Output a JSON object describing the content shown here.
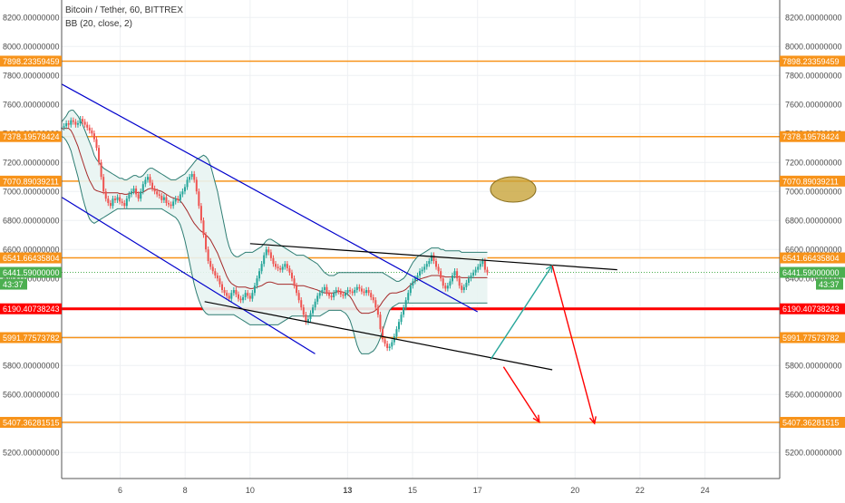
{
  "header": {
    "title": "Bitcoin / Tether, 60, BITTREX",
    "indicator": "BB (20, close, 2)"
  },
  "colors": {
    "orange": "#f7931a",
    "red": "#ff0000",
    "green": "#26a69a",
    "blue_line": "#0000cc",
    "bb_band": "#2e7d73",
    "bb_fill": "#e8f4f2",
    "bb_mid": "#a52a2a",
    "candle_up": "#26a69a",
    "candle_down": "#ef5350",
    "ellipse": "#c8a43a",
    "last_price": "#4caf50"
  },
  "chart_data": {
    "type": "candlestick",
    "y_axis": {
      "range": [
        5020,
        8320
      ],
      "ticks": [
        "8200.00000000",
        "8000.00000000",
        "7800.00000000",
        "7600.00000000",
        "7400.00000000",
        "7200.00000000",
        "7000.00000000",
        "6800.00000000",
        "6600.00000000",
        "6400.00000000",
        "6200.00000000",
        "6000.00000000",
        "5800.00000000",
        "5600.00000000",
        "5400.00000000",
        "5200.00000000"
      ],
      "tick_values": [
        8200,
        8000,
        7800,
        7600,
        7400,
        7200,
        7000,
        6800,
        6600,
        6400,
        6200,
        6000,
        5800,
        5600,
        5400,
        5200
      ]
    },
    "x_axis": {
      "ticks": [
        "6",
        "8",
        "10",
        "13",
        "15",
        "17",
        "20",
        "22",
        "24"
      ],
      "tick_days": [
        6,
        8,
        10,
        13,
        15,
        17,
        20,
        22,
        24
      ],
      "range_days": [
        4.2,
        26.3
      ]
    },
    "horizontal_levels": [
      {
        "value": 7898.23359459,
        "label": "7898.23359459",
        "color": "orange"
      },
      {
        "value": 7378.19578424,
        "label": "7378.19578424",
        "color": "orange"
      },
      {
        "value": 7070.89039211,
        "label": "7070.89039211",
        "color": "orange"
      },
      {
        "value": 6541.66435804,
        "label": "6541.66435804",
        "color": "orange"
      },
      {
        "value": 6190.40738243,
        "label": "6190.40738243",
        "color": "red"
      },
      {
        "value": 5991.77573782,
        "label": "5991.77573782",
        "color": "orange"
      },
      {
        "value": 5407.36281515,
        "label": "5407.36281515",
        "color": "orange"
      }
    ],
    "last_price": {
      "value": 6441.59,
      "label": "6441.59000000",
      "countdown": "43:37"
    },
    "trend_lines": [
      {
        "color": "blue_line",
        "from": [
          4.2,
          7740
        ],
        "to": [
          17.0,
          6170
        ]
      },
      {
        "color": "blue_line",
        "from": [
          4.2,
          6960
        ],
        "to": [
          12.0,
          5880
        ]
      },
      {
        "color": "black",
        "from": [
          10.0,
          6640
        ],
        "to": [
          21.3,
          6460
        ]
      },
      {
        "color": "black",
        "from": [
          8.6,
          6240
        ],
        "to": [
          19.3,
          5770
        ]
      }
    ],
    "arrows": [
      {
        "color": "green",
        "from": [
          17.4,
          5840
        ],
        "to": [
          19.3,
          6490
        ]
      },
      {
        "color": "red",
        "from": [
          19.3,
          6490
        ],
        "to": [
          20.6,
          5400
        ]
      },
      {
        "color": "red",
        "from": [
          17.8,
          5790
        ],
        "to": [
          18.9,
          5410
        ]
      }
    ],
    "closes": [
      7440,
      7450,
      7470,
      7460,
      7490,
      7480,
      7460,
      7470,
      7500,
      7480,
      7460,
      7440,
      7420,
      7400,
      7360,
      7300,
      7200,
      7100,
      7000,
      6950,
      6920,
      6900,
      6950,
      6940,
      6960,
      6930,
      6920,
      6900,
      6950,
      6980,
      7000,
      7020,
      6980,
      6950,
      7000,
      7050,
      7080,
      7100,
      7060,
      7020,
      7000,
      6980,
      6970,
      6940,
      6960,
      6920,
      6910,
      6900,
      6930,
      6950,
      6940,
      6980,
      7000,
      7030,
      7080,
      7100,
      7120,
      7080,
      7000,
      6900,
      6800,
      6700,
      6600,
      6520,
      6480,
      6450,
      6420,
      6400,
      6360,
      6320,
      6300,
      6280,
      6260,
      6300,
      6320,
      6290,
      6260,
      6250,
      6270,
      6300,
      6280,
      6260,
      6300,
      6350,
      6400,
      6450,
      6500,
      6560,
      6600,
      6580,
      6540,
      6500,
      6480,
      6470,
      6460,
      6480,
      6500,
      6470,
      6440,
      6400,
      6350,
      6300,
      6250,
      6200,
      6150,
      6100,
      6120,
      6160,
      6200,
      6240,
      6280,
      6300,
      6320,
      6340,
      6300,
      6280,
      6270,
      6300,
      6320,
      6310,
      6290,
      6280,
      6300,
      6320,
      6310,
      6300,
      6320,
      6340,
      6330,
      6310,
      6300,
      6320,
      6300,
      6270,
      6250,
      6200,
      6150,
      6050,
      5980,
      5950,
      5920,
      5930,
      5960,
      6000,
      6050,
      6100,
      6150,
      6200,
      6250,
      6300,
      6350,
      6380,
      6400,
      6420,
      6450,
      6460,
      6480,
      6500,
      6520,
      6560,
      6520,
      6480,
      6450,
      6400,
      6350,
      6330,
      6350,
      6380,
      6420,
      6450,
      6400,
      6350,
      6320,
      6340,
      6370,
      6400,
      6420,
      6440,
      6460,
      6480,
      6500,
      6520,
      6460,
      6441.59
    ],
    "bb_upper": [
      7480,
      7500,
      7520,
      7550,
      7560,
      7560,
      7540,
      7520,
      7490,
      7460,
      7420,
      7380,
      7340,
      7300,
      7250,
      7220,
      7200,
      7180,
      7160,
      7150,
      7140,
      7130,
      7120,
      7110,
      7100,
      7090,
      7090,
      7080,
      7080,
      7090,
      7100,
      7110,
      7110,
      7100,
      7100,
      7110,
      7130,
      7150,
      7160,
      7160,
      7150,
      7140,
      7130,
      7120,
      7110,
      7100,
      7090,
      7080,
      7080,
      7080,
      7090,
      7100,
      7110,
      7120,
      7140,
      7160,
      7180,
      7200,
      7220,
      7230,
      7240,
      7250,
      7240,
      7220,
      7180,
      7120,
      7060,
      7000,
      6920,
      6840,
      6760,
      6680,
      6620,
      6580,
      6560,
      6550,
      6550,
      6560,
      6570,
      6580,
      6580,
      6580,
      6580,
      6590,
      6600,
      6610,
      6620,
      6640,
      6660,
      6670,
      6670,
      6660,
      6650,
      6640,
      6630,
      6620,
      6610,
      6600,
      6590,
      6580,
      6570,
      6560,
      6560,
      6560,
      6560,
      6550,
      6540,
      6530,
      6520,
      6510,
      6500,
      6480,
      6460,
      6440,
      6430,
      6420,
      6420,
      6420,
      6430,
      6440,
      6440,
      6440,
      6440,
      6440,
      6440,
      6440,
      6440,
      6440,
      6440,
      6440,
      6440,
      6440,
      6440,
      6440,
      6440,
      6440,
      6440,
      6440,
      6440,
      6430,
      6420,
      6410,
      6400,
      6390,
      6380,
      6380,
      6390,
      6400,
      6420,
      6450,
      6480,
      6510,
      6530,
      6550,
      6560,
      6570,
      6580,
      6590,
      6600,
      6610,
      6610,
      6610,
      6610,
      6600,
      6600,
      6590,
      6590,
      6590,
      6590,
      6590,
      6590,
      6590,
      6580,
      6580,
      6580,
      6580,
      6580,
      6580,
      6580,
      6580,
      6580,
      6580,
      6580,
      6580
    ],
    "bb_lower": [
      7380,
      7370,
      7350,
      7320,
      7280,
      7220,
      7160,
      7100,
      7030,
      6960,
      6900,
      6850,
      6810,
      6790,
      6780,
      6790,
      6800,
      6810,
      6820,
      6830,
      6840,
      6850,
      6860,
      6870,
      6880,
      6880,
      6880,
      6880,
      6880,
      6880,
      6880,
      6880,
      6880,
      6880,
      6880,
      6880,
      6880,
      6880,
      6880,
      6880,
      6880,
      6880,
      6880,
      6880,
      6870,
      6860,
      6850,
      6840,
      6830,
      6820,
      6800,
      6770,
      6720,
      6660,
      6590,
      6510,
      6430,
      6360,
      6300,
      6250,
      6210,
      6180,
      6160,
      6150,
      6150,
      6150,
      6150,
      6150,
      6150,
      6150,
      6150,
      6150,
      6150,
      6150,
      6150,
      6140,
      6130,
      6120,
      6110,
      6100,
      6090,
      6080,
      6080,
      6080,
      6080,
      6080,
      6080,
      6080,
      6080,
      6080,
      6080,
      6080,
      6080,
      6080,
      6090,
      6100,
      6110,
      6120,
      6130,
      6140,
      6140,
      6140,
      6140,
      6140,
      6140,
      6140,
      6140,
      6140,
      6140,
      6140,
      6140,
      6140,
      6150,
      6160,
      6170,
      6180,
      6180,
      6180,
      6180,
      6180,
      6180,
      6170,
      6160,
      6140,
      6110,
      6060,
      6000,
      5940,
      5900,
      5880,
      5880,
      5880,
      5880,
      5890,
      5900,
      5920,
      5950,
      5990,
      6040,
      6090,
      6140,
      6180,
      6200,
      6210,
      6220,
      6230,
      6230,
      6230,
      6230,
      6230,
      6230,
      6230,
      6230,
      6230,
      6230,
      6230,
      6230,
      6230,
      6230,
      6230,
      6230,
      6230,
      6230,
      6230,
      6230,
      6230,
      6230,
      6230,
      6230,
      6230,
      6230,
      6230,
      6230,
      6230,
      6230,
      6230,
      6230,
      6230,
      6230,
      6230,
      6230,
      6230,
      6230,
      6230,
      6230,
      6230,
      6230
    ]
  }
}
